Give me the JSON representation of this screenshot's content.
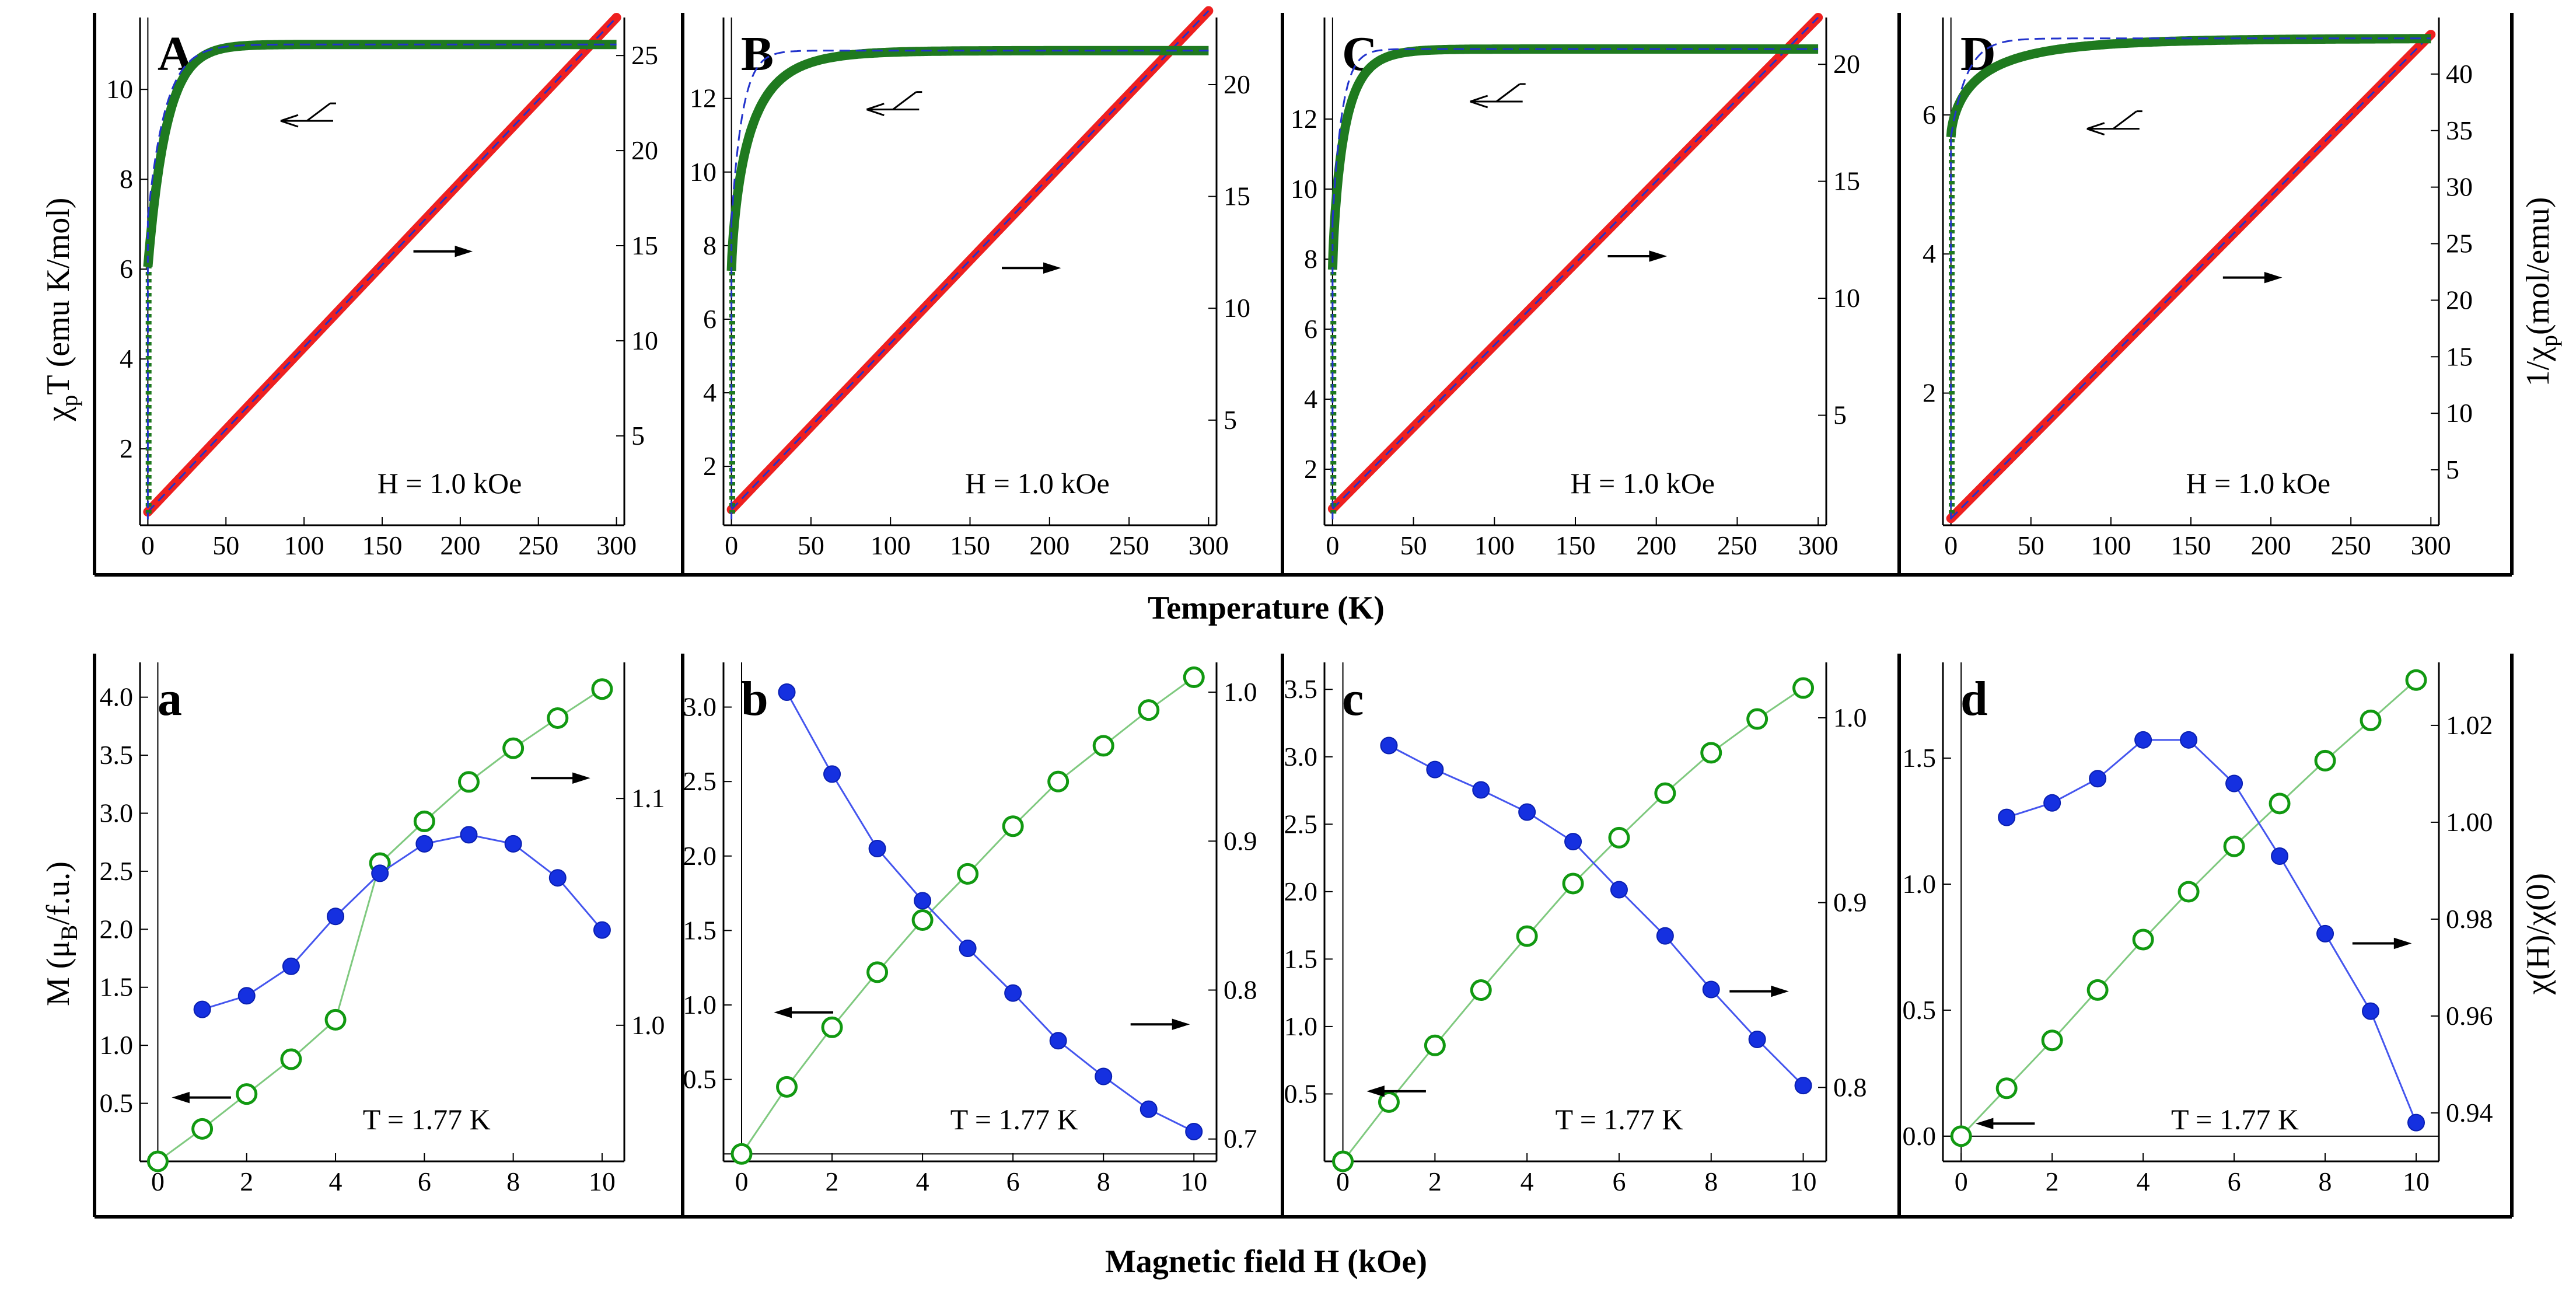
{
  "figure": {
    "top_xlabel": "Temperature (K)",
    "bottom_xlabel": "Magnetic field H (kOe)",
    "top_left_ylabel_main": "χ",
    "top_left_ylabel_sub": "p",
    "top_left_ylabel_rest": "T (emu K/mol)",
    "top_right_ylabel_main": "1/χ",
    "top_right_ylabel_sub": "p",
    "top_right_ylabel_rest": "(mol/emu)",
    "bottom_left_ylabel_main": "M (μ",
    "bottom_left_ylabel_sub": "B",
    "bottom_left_ylabel_rest": "/f.u.)",
    "bottom_right_ylabel": "χ(H)/χ(0)",
    "colors": {
      "chiT": "#1f7a1f",
      "fit": "#2233cc",
      "invchi": "#ee2020",
      "magnetization": "#119911",
      "ratio": "#1530e0",
      "axis": "#000000"
    }
  },
  "chart_data": [
    {
      "panel": "A",
      "type": "line",
      "annotation": "H = 1.0 kOe",
      "xlim": [
        -5,
        305
      ],
      "xticks": [
        0,
        50,
        100,
        150,
        200,
        250,
        300
      ],
      "ylim_left": [
        0.3,
        11.6
      ],
      "yticks_left": [
        2,
        4,
        6,
        8,
        10
      ],
      "ylim_right": [
        0.3,
        27
      ],
      "yticks_right": [
        5,
        10,
        15,
        20,
        25
      ],
      "chiT_series": {
        "name": "χpT",
        "sat": 11.0,
        "a": 0.45,
        "b": 12.0,
        "p": 1.0
      },
      "fit_series": {
        "name": "fit",
        "sat": 11.0,
        "a": 0.35,
        "b": 11.5,
        "p": 1.0
      },
      "invchi_series": {
        "name": "1/χp",
        "x": [
          0,
          300
        ],
        "y": [
          1.0,
          27.0
        ]
      },
      "arrow_left": {
        "x": 85,
        "y": 9.3
      },
      "arrow_right": {
        "x": 170,
        "y": 14.7
      }
    },
    {
      "panel": "B",
      "type": "line",
      "annotation": "H = 1.0 kOe",
      "xlim": [
        -5,
        305
      ],
      "xticks": [
        0,
        50,
        100,
        150,
        200,
        250,
        300
      ],
      "ylim_left": [
        0.4,
        14.2
      ],
      "yticks_left": [
        2,
        4,
        6,
        8,
        10,
        12
      ],
      "ylim_right": [
        0.3,
        23
      ],
      "yticks_right": [
        5,
        10,
        15,
        20
      ],
      "chiT_series": {
        "name": "χpT",
        "sat": 13.3,
        "a": 0.45,
        "b": 12.0,
        "p": 0.75
      },
      "fit_series": {
        "name": "fit",
        "sat": 13.3,
        "a": 0.35,
        "b": 7.0,
        "p": 1.0
      },
      "invchi_series": {
        "name": "1/χp",
        "x": [
          0,
          300
        ],
        "y": [
          1.0,
          23.3
        ]
      },
      "arrow_left": {
        "x": 85,
        "y": 11.7
      },
      "arrow_right": {
        "x": 170,
        "y": 11.8
      }
    },
    {
      "panel": "C",
      "type": "line",
      "annotation": "H = 1.0 kOe",
      "xlim": [
        -5,
        305
      ],
      "xticks": [
        0,
        50,
        100,
        150,
        200,
        250,
        300
      ],
      "ylim_left": [
        0.4,
        14.9
      ],
      "yticks_left": [
        2,
        4,
        6,
        8,
        10,
        12
      ],
      "ylim_right": [
        0.3,
        22
      ],
      "yticks_right": [
        5,
        10,
        15,
        20
      ],
      "chiT_series": {
        "name": "χpT",
        "sat": 14.0,
        "a": 0.45,
        "b": 7.5,
        "p": 0.8
      },
      "fit_series": {
        "name": "fit",
        "sat": 14.0,
        "a": 0.35,
        "b": 6.0,
        "p": 1.0
      },
      "invchi_series": {
        "name": "1/χp",
        "x": [
          0,
          300
        ],
        "y": [
          1.0,
          22.0
        ]
      },
      "arrow_left": {
        "x": 85,
        "y": 12.5
      },
      "arrow_right": {
        "x": 170,
        "y": 11.8
      }
    },
    {
      "panel": "D",
      "type": "line",
      "annotation": "H = 1.0 kOe",
      "xlim": [
        -5,
        305
      ],
      "xticks": [
        0,
        50,
        100,
        150,
        200,
        250,
        300
      ],
      "ylim_left": [
        0.1,
        7.4
      ],
      "yticks_left": [
        2,
        4,
        6
      ],
      "ylim_right": [
        0.1,
        45
      ],
      "yticks_right": [
        5,
        10,
        15,
        20,
        25,
        30,
        35,
        40
      ],
      "chiT_series": {
        "name": "χpT",
        "sat": 7.1,
        "a": 0.2,
        "b": 20.0,
        "p": 0.65
      },
      "fit_series": {
        "name": "fit",
        "sat": 7.1,
        "a": 0.2,
        "b": 10.0,
        "p": 1.0
      },
      "invchi_series": {
        "name": "1/χp",
        "x": [
          0,
          300
        ],
        "y": [
          0.7,
          43.5
        ]
      },
      "arrow_left": {
        "x": 85,
        "y": 5.8
      },
      "arrow_right": {
        "x": 170,
        "y": 22.0
      }
    },
    {
      "panel": "a",
      "type": "scatter",
      "annotation": "T = 1.77 K",
      "xlim": [
        -0.4,
        10.5
      ],
      "xticks": [
        0,
        2,
        4,
        6,
        8,
        10
      ],
      "ylim_left": [
        0.0,
        4.3
      ],
      "yticks_left": [
        0.5,
        1.0,
        1.5,
        2.0,
        2.5,
        3.0,
        3.5,
        4.0
      ],
      "yticks_left_labels": [
        "0.5",
        "1.0",
        "1.5",
        "2.0",
        "2.5",
        "3.0",
        "3.5",
        "4.0"
      ],
      "ylim_right": [
        0.94,
        1.16
      ],
      "yticks_right": [
        1.0,
        1.1
      ],
      "yticks_right_labels": [
        "1.0",
        "1.1"
      ],
      "magnetization": {
        "name": "M",
        "x": [
          0,
          1,
          2,
          3,
          4,
          5,
          6,
          7,
          8,
          9,
          10
        ],
        "y": [
          0.0,
          0.28,
          0.58,
          0.88,
          1.22,
          2.57,
          2.93,
          3.27,
          3.56,
          3.82,
          4.07
        ]
      },
      "ratio": {
        "name": "χ(H)/χ(0)",
        "x": [
          1,
          2,
          3,
          4,
          5,
          6,
          7,
          8,
          9,
          10
        ],
        "y": [
          1.007,
          1.013,
          1.026,
          1.048,
          1.067,
          1.08,
          1.084,
          1.08,
          1.065,
          1.042
        ]
      },
      "arrow_left": {
        "x": 0.4,
        "y": 0.55
      },
      "arrow_right": {
        "x": 8.4,
        "y": 1.109
      }
    },
    {
      "panel": "b",
      "type": "scatter",
      "annotation": "T = 1.77 K",
      "xlim": [
        -0.4,
        10.5
      ],
      "xticks": [
        0,
        2,
        4,
        6,
        8,
        10
      ],
      "ylim_left": [
        -0.05,
        3.3
      ],
      "yticks_left": [
        0.5,
        1.0,
        1.5,
        2.0,
        2.5,
        3.0
      ],
      "yticks_left_labels": [
        "0.5",
        "1.0",
        "1.5",
        "2.0",
        "2.5",
        "3.0"
      ],
      "ylim_right": [
        0.685,
        1.02
      ],
      "yticks_right": [
        0.7,
        0.8,
        0.9,
        1.0
      ],
      "yticks_right_labels": [
        "0.7",
        "0.8",
        "0.9",
        "1.0"
      ],
      "magnetization": {
        "name": "M",
        "x": [
          0,
          1,
          2,
          3,
          4,
          5,
          6,
          7,
          8,
          9,
          10
        ],
        "y": [
          0.0,
          0.45,
          0.85,
          1.22,
          1.57,
          1.88,
          2.2,
          2.5,
          2.74,
          2.98,
          3.2
        ]
      },
      "ratio": {
        "name": "χ(H)/χ(0)",
        "x": [
          1,
          2,
          3,
          4,
          5,
          6,
          7,
          8,
          9,
          10
        ],
        "y": [
          1.0,
          0.945,
          0.895,
          0.86,
          0.828,
          0.798,
          0.766,
          0.742,
          0.72,
          0.705
        ]
      },
      "arrow_left": {
        "x": 0.8,
        "y": 0.95
      },
      "arrow_right": {
        "x": 8.6,
        "y": 0.777
      }
    },
    {
      "panel": "c",
      "type": "scatter",
      "annotation": "T = 1.77 K",
      "xlim": [
        -0.4,
        10.5
      ],
      "xticks": [
        0,
        2,
        4,
        6,
        8,
        10
      ],
      "ylim_left": [
        0.0,
        3.7
      ],
      "yticks_left": [
        0.5,
        1.0,
        1.5,
        2.0,
        2.5,
        3.0,
        3.5
      ],
      "yticks_left_labels": [
        "0.5",
        "1.0",
        "1.5",
        "2.0",
        "2.5",
        "3.0",
        "3.5"
      ],
      "ylim_right": [
        0.76,
        1.03
      ],
      "yticks_right": [
        0.8,
        0.9,
        1.0
      ],
      "yticks_right_labels": [
        "0.8",
        "0.9",
        "1.0"
      ],
      "magnetization": {
        "name": "M",
        "x": [
          0,
          1,
          2,
          3,
          4,
          5,
          6,
          7,
          8,
          9,
          10
        ],
        "y": [
          0.0,
          0.44,
          0.86,
          1.27,
          1.67,
          2.06,
          2.4,
          2.73,
          3.03,
          3.28,
          3.51
        ]
      },
      "ratio": {
        "name": "χ(H)/χ(0)",
        "x": [
          1,
          2,
          3,
          4,
          5,
          6,
          7,
          8,
          9,
          10
        ],
        "y": [
          0.985,
          0.972,
          0.961,
          0.949,
          0.933,
          0.907,
          0.882,
          0.853,
          0.826,
          0.801
        ]
      },
      "arrow_left": {
        "x": 0.6,
        "y": 0.52
      },
      "arrow_right": {
        "x": 8.4,
        "y": 0.852
      }
    },
    {
      "panel": "d",
      "type": "scatter",
      "annotation": "T = 1.77 K",
      "xlim": [
        -0.4,
        10.5
      ],
      "xticks": [
        0,
        2,
        4,
        6,
        8,
        10
      ],
      "ylim_left": [
        -0.1,
        1.88
      ],
      "yticks_left": [
        0.0,
        0.5,
        1.0,
        1.5
      ],
      "yticks_left_labels": [
        "0.0",
        "0.5",
        "1.0",
        "1.5"
      ],
      "ylim_right": [
        0.93,
        1.033
      ],
      "yticks_right": [
        0.94,
        0.96,
        0.98,
        1.0,
        1.02
      ],
      "yticks_right_labels": [
        "0.94",
        "0.96",
        "0.98",
        "1.00",
        "1.02"
      ],
      "magnetization": {
        "name": "M",
        "x": [
          0,
          1,
          2,
          3,
          4,
          5,
          6,
          7,
          8,
          9,
          10
        ],
        "y": [
          0.0,
          0.19,
          0.38,
          0.58,
          0.78,
          0.97,
          1.15,
          1.32,
          1.49,
          1.65,
          1.81
        ]
      },
      "ratio": {
        "name": "χ(H)/χ(0)",
        "x": [
          1,
          2,
          3,
          4,
          5,
          6,
          7,
          8,
          9,
          10
        ],
        "y": [
          1.001,
          1.004,
          1.009,
          1.017,
          1.017,
          1.008,
          0.993,
          0.977,
          0.961,
          0.938
        ]
      },
      "arrow_left": {
        "x": 0.4,
        "y": 0.05
      },
      "arrow_right": {
        "x": 8.6,
        "y": 0.975
      }
    }
  ]
}
